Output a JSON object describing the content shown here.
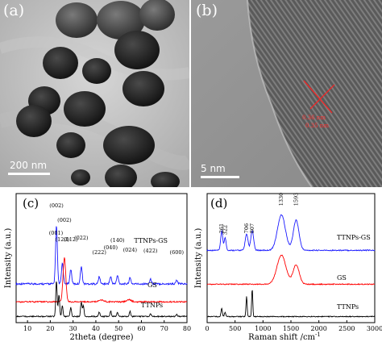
{
  "panel_a": {
    "label": "(a)",
    "scale_label": "200 nm"
  },
  "panel_b": {
    "label": "(b)",
    "scale_label": "5 nm",
    "lattice_label_1": "0.36 nm",
    "lattice_label_2": "0.35 nm"
  },
  "chart_data": [
    {
      "type": "line",
      "panel_label": "(c)",
      "xlabel": "2theta (degree)",
      "ylabel": "Intensity (a.u.)",
      "xlim": [
        5,
        80
      ],
      "xticks": [
        10,
        20,
        30,
        40,
        50,
        60,
        70,
        80
      ],
      "yticks_shown": false,
      "legend": "none",
      "series": [
        {
          "name": "TTNPs-GS",
          "color": "#1a1aff"
        },
        {
          "name": "GS",
          "color": "#ff0000"
        },
        {
          "name": "TTNPs",
          "color": "#000000"
        }
      ],
      "peak_labels": [
        {
          "text": "(002)",
          "x": 22.7
        },
        {
          "text": "(002)",
          "x": 26.2
        },
        {
          "text": "(001)",
          "x": 22.5
        },
        {
          "text": "(120)",
          "x": 25.3
        },
        {
          "text": "(112)",
          "x": 29.0
        },
        {
          "text": "(022)",
          "x": 33.6
        },
        {
          "text": "(222)",
          "x": 41.5
        },
        {
          "text": "(040)",
          "x": 46.5
        },
        {
          "text": "(140)",
          "x": 49.5
        },
        {
          "text": "(024)",
          "x": 55.0
        },
        {
          "text": "(422)",
          "x": 64.0
        },
        {
          "text": "(600)",
          "x": 75.5
        }
      ]
    },
    {
      "type": "line",
      "panel_label": "(d)",
      "xlabel": "Raman shift /cm",
      "xlabel_sup": "-1",
      "ylabel": "Intensity (a.u.)",
      "xlim": [
        0,
        3000
      ],
      "xticks": [
        0,
        500,
        1000,
        1500,
        2000,
        2500,
        3000
      ],
      "yticks_shown": false,
      "legend": "none",
      "series": [
        {
          "name": "TTNPs-GS",
          "color": "#1a1aff"
        },
        {
          "name": "GS",
          "color": "#ff0000"
        },
        {
          "name": "TTNPs",
          "color": "#000000"
        }
      ],
      "peak_labels": [
        {
          "text": "261",
          "x": 261
        },
        {
          "text": "322",
          "x": 322
        },
        {
          "text": "706",
          "x": 706
        },
        {
          "text": "807",
          "x": 807
        },
        {
          "text": "1330",
          "x": 1330
        },
        {
          "text": "1593",
          "x": 1593
        }
      ]
    }
  ]
}
